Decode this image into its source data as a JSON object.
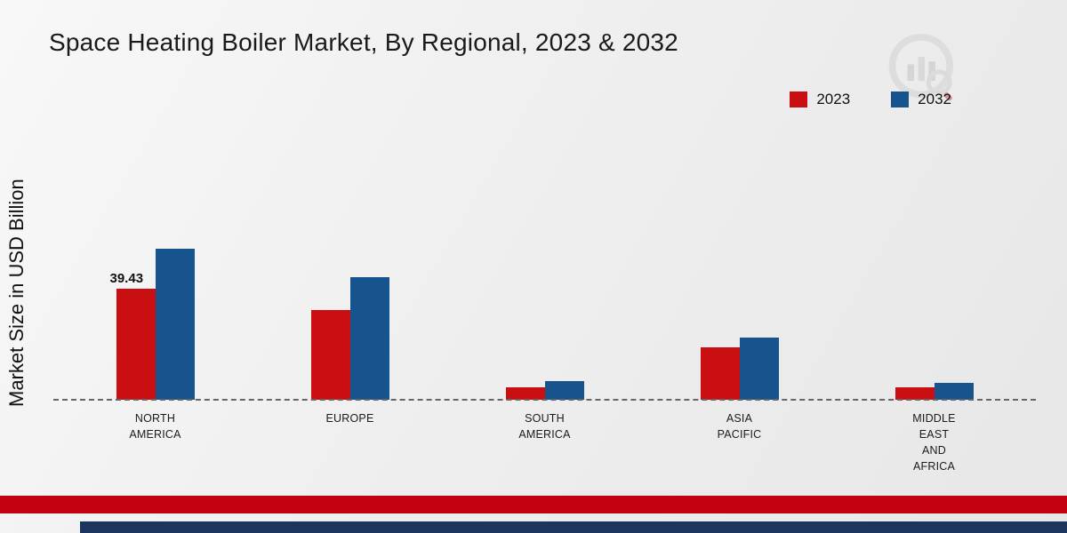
{
  "title": "Space Heating Boiler Market, By Regional, 2023 & 2032",
  "ylabel": "Market Size in USD Billion",
  "legend": [
    {
      "label": "2023",
      "color": "#c90f12"
    },
    {
      "label": "2032",
      "color": "#17538c"
    }
  ],
  "chart_data": {
    "type": "bar",
    "title": "Space Heating Boiler Market, By Regional, 2023 & 2032",
    "xlabel": "",
    "ylabel": "Market Size in USD Billion",
    "ylim": [
      0,
      60
    ],
    "grid": false,
    "baseline_style": "dashed",
    "legend_position": "top-right",
    "categories": [
      "NORTH AMERICA",
      "EUROPE",
      "SOUTH AMERICA",
      "ASIA PACIFIC",
      "MIDDLE EAST AND AFRICA"
    ],
    "category_label_lines": [
      [
        "NORTH",
        "AMERICA"
      ],
      [
        "EUROPE"
      ],
      [
        "SOUTH",
        "AMERICA"
      ],
      [
        "ASIA",
        "PACIFIC"
      ],
      [
        "MIDDLE",
        "EAST",
        "AND",
        "AFRICA"
      ]
    ],
    "series": [
      {
        "name": "2023",
        "color": "#c90f12",
        "values": [
          39.43,
          32.0,
          4.5,
          18.5,
          4.5
        ]
      },
      {
        "name": "2032",
        "color": "#17538c",
        "values": [
          53.5,
          43.5,
          6.5,
          22.0,
          6.0
        ]
      }
    ],
    "annotations": [
      {
        "category_index": 0,
        "series_index": 0,
        "text": "39.43"
      }
    ]
  }
}
